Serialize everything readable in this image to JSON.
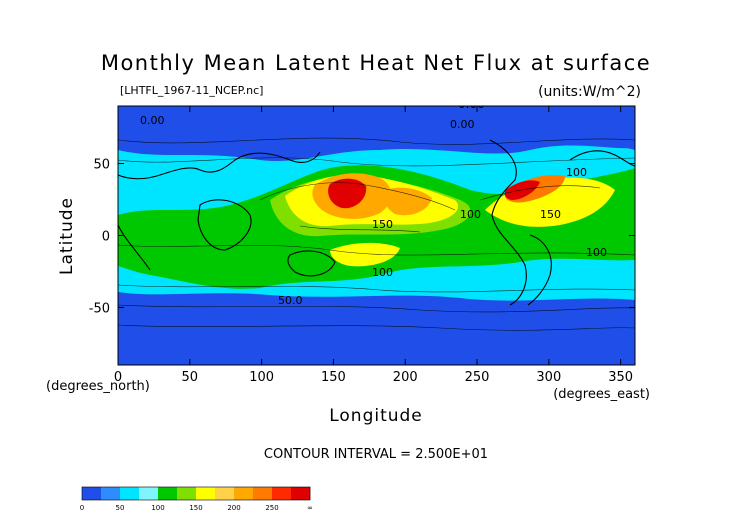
{
  "chart_data": {
    "type": "heatmap",
    "title": "Monthly Mean Latent Heat Net Flux at surface",
    "file_label": "[LHTFL_1967-11_NCEP.nc]",
    "units_label": "(units:W/m^2)",
    "xlabel": "Longitude",
    "ylabel": "Latitude",
    "x_units": "(degrees_east)",
    "y_units": "(degrees_north)",
    "xlim": [
      0,
      360
    ],
    "ylim": [
      -90,
      90
    ],
    "x_ticks": [
      0,
      50,
      100,
      150,
      200,
      250,
      300,
      350
    ],
    "y_ticks": [
      50,
      0,
      -50
    ],
    "contour_interval": "CONTOUR INTERVAL = 2.500E+01",
    "contour_labels": [
      "0.00",
      "0.00",
      "0.00",
      "100",
      "150",
      "100",
      "150",
      "100",
      "100",
      "50.0"
    ],
    "colorbar": {
      "ticks": [
        "0",
        "50",
        "100",
        "150",
        "200",
        "250",
        "∞"
      ],
      "bins": [
        {
          "from": 0,
          "to": 25,
          "color": "#1f4fe8"
        },
        {
          "from": 25,
          "to": 50,
          "color": "#2f8cff"
        },
        {
          "from": 50,
          "to": 75,
          "color": "#00e5ff"
        },
        {
          "from": 75,
          "to": 100,
          "color": "#7ff5ff"
        },
        {
          "from": 100,
          "to": 125,
          "color": "#00c800"
        },
        {
          "from": 125,
          "to": 150,
          "color": "#7fe000"
        },
        {
          "from": 150,
          "to": 175,
          "color": "#ffff00"
        },
        {
          "from": 175,
          "to": 200,
          "color": "#ffd24a"
        },
        {
          "from": 200,
          "to": 225,
          "color": "#ffa800"
        },
        {
          "from": 225,
          "to": 250,
          "color": "#ff7a00"
        },
        {
          "from": 250,
          "to": 275,
          "color": "#ff2a00"
        },
        {
          "from": 275,
          "to": 300,
          "color": "#e00000"
        }
      ]
    }
  }
}
